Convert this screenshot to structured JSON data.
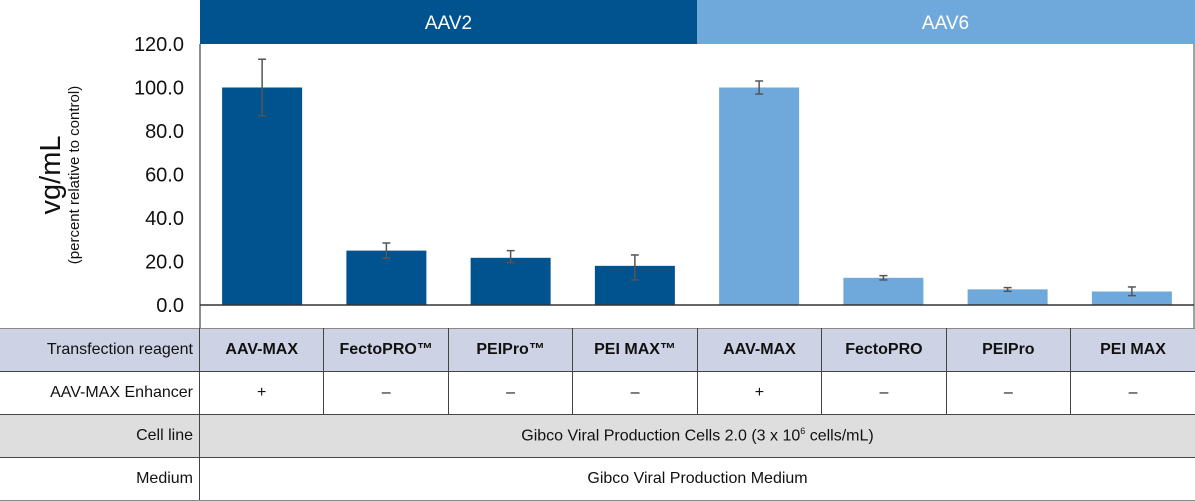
{
  "chart_data": {
    "type": "bar",
    "ylabel": "vg/mL",
    "ylabel_sub": "(percent relative to control)",
    "ylim": [
      0,
      120
    ],
    "yticks": [
      "0.0",
      "20.0",
      "40.0",
      "60.0",
      "80.0",
      "100.0",
      "120.0"
    ],
    "grid": false,
    "groups": [
      {
        "name": "AAV2",
        "color": "#00538e",
        "categories": [
          "AAV-MAX",
          "FectoPRO™",
          "PEIPro™",
          "PEI MAX™"
        ],
        "values": [
          100,
          25,
          21.7,
          18
        ],
        "error_low": [
          87,
          21.5,
          19.5,
          11.5
        ],
        "error_high": [
          113,
          28.5,
          25,
          23
        ]
      },
      {
        "name": "AAV6",
        "color": "#6fa9dc",
        "categories": [
          "AAV-MAX",
          "FectoPRO",
          "PEIPro",
          "PEI MAX"
        ],
        "values": [
          100,
          12.5,
          7.2,
          6.2
        ],
        "error_low": [
          97,
          11.5,
          6.3,
          4.3
        ],
        "error_high": [
          103,
          13.5,
          8,
          8.3
        ]
      }
    ]
  },
  "table": {
    "rows": [
      {
        "label": "Transfection reagent",
        "cells": [
          "AAV-MAX",
          "FectoPRO™",
          "PEIPro™",
          "PEI MAX™",
          "AAV-MAX",
          "FectoPRO",
          "PEIPro",
          "PEI MAX"
        ]
      },
      {
        "label": "AAV-MAX Enhancer",
        "cells": [
          "+",
          "–",
          "–",
          "–",
          "+",
          "–",
          "–",
          "–"
        ]
      }
    ],
    "cell_line_label": "Cell line",
    "cell_line_value": "Gibco Viral Production Cells 2.0 (3 x 10",
    "cell_line_exp": "6",
    "cell_line_tail": " cells/mL)",
    "medium_label": "Medium",
    "medium_value": "Gibco Viral Production Medium"
  }
}
